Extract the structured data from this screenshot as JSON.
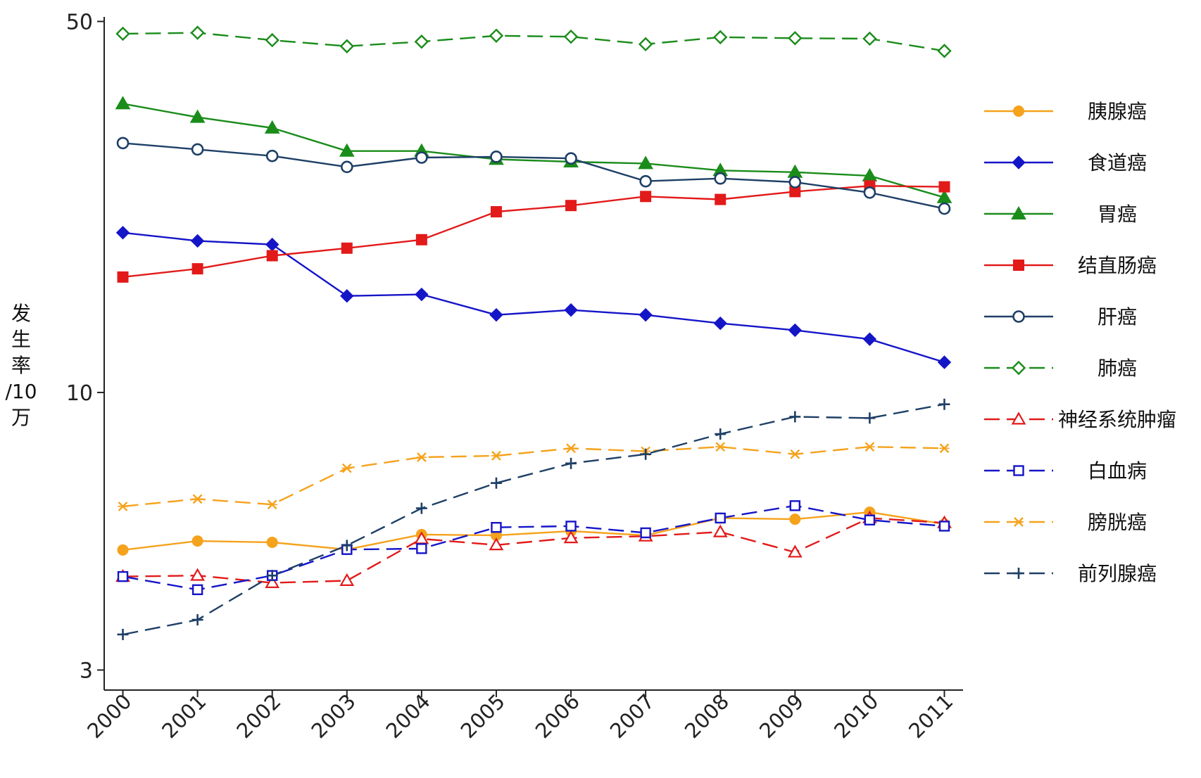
{
  "chart_data": {
    "type": "line",
    "title": "",
    "xlabel": "",
    "ylabel": "发生率/10万",
    "ylabel_lines": [
      "发",
      "生",
      "率",
      "/10",
      "万"
    ],
    "y_scale": "log",
    "ylim": [
      2.75,
      51
    ],
    "xlim": [
      1999.75,
      2011.25
    ],
    "y_ticks": [
      50,
      10,
      3
    ],
    "y_tick_labels": [
      "50",
      "10",
      "3"
    ],
    "x": [
      2000,
      2001,
      2002,
      2003,
      2004,
      2005,
      2006,
      2007,
      2008,
      2009,
      2010,
      2011
    ],
    "x_tick_labels": [
      "2000",
      "2001",
      "2002",
      "2003",
      "2004",
      "2005",
      "2006",
      "2007",
      "2008",
      "2009",
      "2010",
      "2011"
    ],
    "grid": false,
    "legend_position": "right",
    "series": [
      {
        "name": "胰腺癌",
        "color": "#f5a21c",
        "dash": "solid",
        "marker": "circle-filled",
        "values": [
          5.05,
          5.25,
          5.22,
          5.06,
          5.4,
          5.38,
          5.48,
          5.38,
          5.8,
          5.77,
          5.95,
          5.65
        ]
      },
      {
        "name": "食道癌",
        "color": "#1515c8",
        "dash": "solid",
        "marker": "diamond-filled",
        "values": [
          20.0,
          19.3,
          19.0,
          15.2,
          15.3,
          14.0,
          14.3,
          14.0,
          13.5,
          13.1,
          12.6,
          11.4
        ]
      },
      {
        "name": "胃癌",
        "color": "#1a8c1a",
        "dash": "solid",
        "marker": "triangle-filled",
        "values": [
          35.0,
          33.0,
          31.5,
          28.5,
          28.5,
          27.5,
          27.2,
          27.0,
          26.2,
          26.0,
          25.6,
          23.3
        ]
      },
      {
        "name": "结直肠癌",
        "color": "#e21a1a",
        "dash": "solid",
        "marker": "square-filled",
        "values": [
          16.5,
          17.1,
          18.1,
          18.7,
          19.4,
          21.9,
          22.5,
          23.4,
          23.1,
          23.9,
          24.5,
          24.4
        ]
      },
      {
        "name": "肝癌",
        "color": "#1e3f66",
        "dash": "solid",
        "marker": "circle-open",
        "values": [
          29.5,
          28.7,
          27.9,
          26.6,
          27.7,
          27.8,
          27.6,
          25.0,
          25.3,
          24.9,
          23.8,
          22.2
        ]
      },
      {
        "name": "肺癌",
        "color": "#1a8c1a",
        "dash": "dashed",
        "marker": "diamond-open",
        "values": [
          47.4,
          47.6,
          46.1,
          44.9,
          45.8,
          47.0,
          46.8,
          45.3,
          46.7,
          46.5,
          46.4,
          44.0
        ]
      },
      {
        "name": "神经系统肿瘤",
        "color": "#e21a1a",
        "dash": "dashed",
        "marker": "triangle-open",
        "values": [
          4.5,
          4.52,
          4.38,
          4.42,
          5.3,
          5.16,
          5.32,
          5.36,
          5.46,
          5.0,
          5.8,
          5.68
        ]
      },
      {
        "name": "白血病",
        "color": "#1515c8",
        "dash": "dashed",
        "marker": "square-open",
        "values": [
          4.5,
          4.25,
          4.52,
          5.06,
          5.08,
          5.57,
          5.6,
          5.44,
          5.8,
          6.12,
          5.75,
          5.6
        ]
      },
      {
        "name": "膀胱癌",
        "color": "#f5a21c",
        "dash": "dashed",
        "marker": "x-cross",
        "values": [
          6.1,
          6.3,
          6.15,
          7.2,
          7.55,
          7.6,
          7.85,
          7.75,
          7.9,
          7.65,
          7.9,
          7.85
        ]
      },
      {
        "name": "前列腺癌",
        "color": "#1e3f66",
        "dash": "dashed",
        "marker": "plus",
        "values": [
          3.5,
          3.73,
          4.52,
          5.15,
          6.05,
          6.75,
          7.35,
          7.65,
          8.35,
          9.0,
          8.95,
          9.5
        ]
      }
    ]
  }
}
